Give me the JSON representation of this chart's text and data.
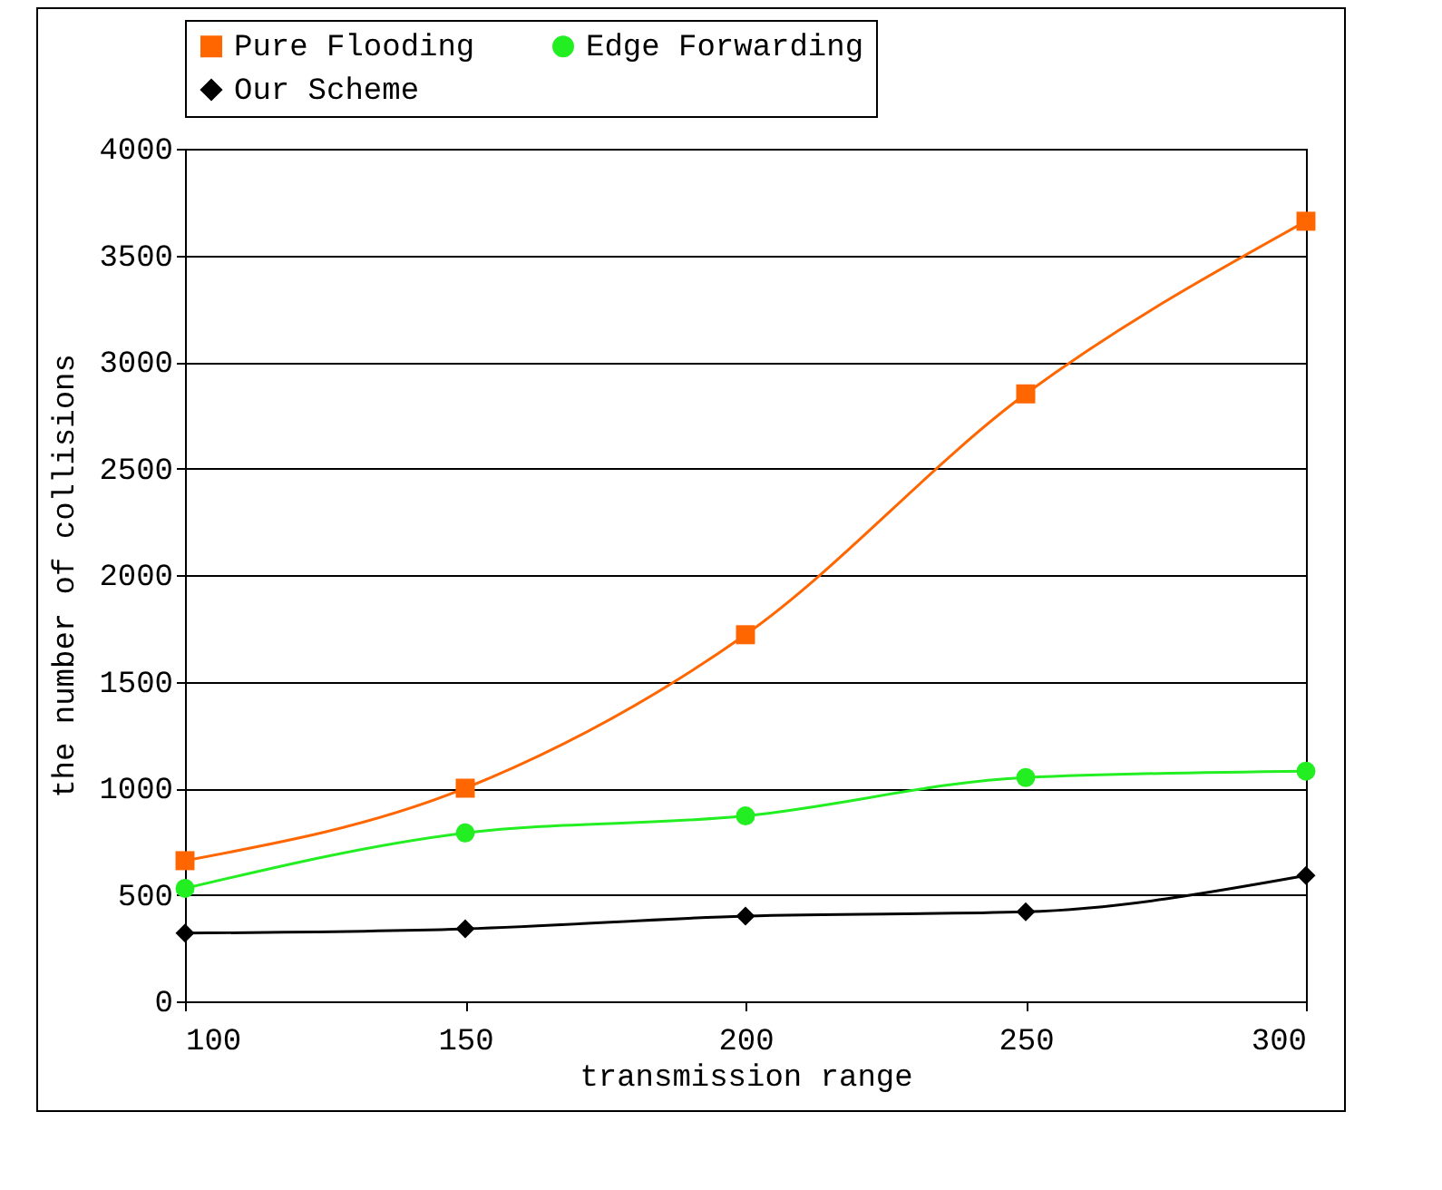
{
  "chart_data": {
    "type": "line",
    "xlabel": "transmission range",
    "ylabel": "the number of collisions",
    "x": [
      100,
      150,
      200,
      250,
      300
    ],
    "series": [
      {
        "name": "Pure Flooding",
        "color": "#ff6600",
        "marker": "square",
        "values": [
          660,
          1000,
          1720,
          2850,
          3660
        ]
      },
      {
        "name": "Edge Forwarding",
        "color": "#22ee22",
        "marker": "circle",
        "values": [
          530,
          790,
          870,
          1050,
          1080
        ]
      },
      {
        "name": "Our Scheme",
        "color": "#000000",
        "marker": "diamond",
        "values": [
          320,
          340,
          400,
          420,
          590
        ]
      }
    ],
    "xlim": [
      100,
      300
    ],
    "xticks": [
      100,
      150,
      200,
      250,
      300
    ],
    "ylim": [
      0,
      4000
    ],
    "yticks": [
      0,
      500,
      1000,
      1500,
      2000,
      2500,
      3000,
      3500,
      4000
    ],
    "grid": "y",
    "legend": "top",
    "line_style": "solid"
  }
}
